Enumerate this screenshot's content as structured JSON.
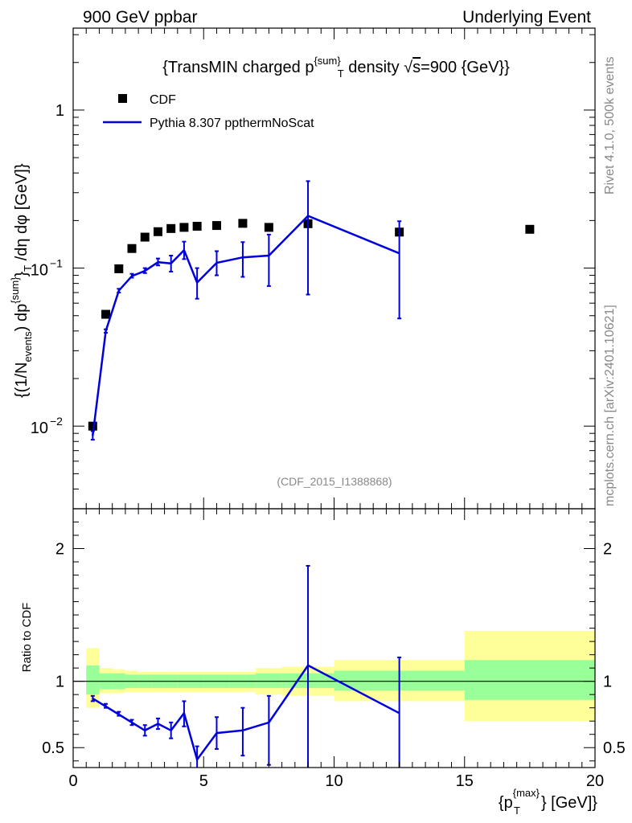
{
  "header": {
    "left": "900 GeV ppbar",
    "right": "Underlying Event"
  },
  "side_labels": {
    "rivet": "Rivet 4.1.0,  500k events",
    "mcplots": "mcplots.cern.ch [arXiv:2401.10621]"
  },
  "chart_data": [
    {
      "type": "scatter",
      "panel": "main",
      "title_parts": {
        "pre": "{TransMIN charged p",
        "sup": "{sum}",
        "sub": "T",
        "post1": " density √",
        "sqrt": "s",
        "post2": "=900 {GeV}}"
      },
      "ylabel_parts": {
        "a": "{(1/N",
        "a_sub": "events",
        "b": ") dp",
        "b_sup": "{sum}",
        "c": "}",
        "c_sub": "T",
        "d": " /dη  dφ [GeV]}"
      },
      "yscale": "log",
      "ylim": [
        0.003,
        3.3
      ],
      "xlim": [
        0,
        20
      ],
      "y_ticks": [
        {
          "value": 1,
          "label": "1"
        },
        {
          "value": 0.1,
          "base": "10",
          "exp": "−1"
        },
        {
          "value": 0.01,
          "base": "10",
          "exp": "−2"
        }
      ],
      "watermark": "(CDF_2015_I1388868)",
      "legend": [
        {
          "name": "CDF",
          "marker": "square",
          "color": "#000000"
        },
        {
          "name": "Pythia 8.307 ppthermNoScat",
          "marker": "line",
          "color": "#0000dd"
        }
      ],
      "series": [
        {
          "name": "CDF",
          "x": [
            0.75,
            1.25,
            1.75,
            2.25,
            2.75,
            3.25,
            3.75,
            4.25,
            4.75,
            5.5,
            6.5,
            7.5,
            9.0,
            12.5,
            17.5
          ],
          "y": [
            0.01,
            0.051,
            0.099,
            0.133,
            0.157,
            0.17,
            0.178,
            0.181,
            0.184,
            0.186,
            0.192,
            0.181,
            0.191,
            0.169,
            0.176
          ]
        },
        {
          "name": "Pythia 8.307 ppthermNoScat",
          "x": [
            0.75,
            1.25,
            1.75,
            2.25,
            2.75,
            3.25,
            3.75,
            4.25,
            4.75,
            5.5,
            6.5,
            7.5,
            9.0,
            12.5
          ],
          "y": [
            0.0087,
            0.04,
            0.072,
            0.089,
            0.096,
            0.109,
            0.107,
            0.13,
            0.081,
            0.108,
            0.117,
            0.12,
            0.214,
            0.124
          ],
          "yerr_low": [
            0.0082,
            0.039,
            0.07,
            0.087,
            0.093,
            0.104,
            0.095,
            0.114,
            0.064,
            0.09,
            0.088,
            0.077,
            0.068,
            0.048
          ],
          "yerr_high": [
            0.0093,
            0.041,
            0.074,
            0.092,
            0.1,
            0.115,
            0.12,
            0.147,
            0.1,
            0.128,
            0.146,
            0.163,
            0.355,
            0.198
          ]
        }
      ]
    },
    {
      "type": "line",
      "panel": "ratio",
      "ylabel": "Ratio to CDF",
      "xlabel_parts": {
        "pre": "{p",
        "sup": "{max}",
        "sub": "T",
        "post": "} [GeV]}"
      },
      "ylim": [
        0.35,
        2.3
      ],
      "xlim": [
        0,
        20
      ],
      "x_ticks": [
        0,
        5,
        10,
        15,
        20
      ],
      "x_tick_labels": [
        "0",
        "5",
        "10",
        "15",
        "20"
      ],
      "y_ticks": [
        0.5,
        1,
        2
      ],
      "y_tick_labels": [
        "0.5",
        "1",
        "2"
      ],
      "reference_line": 1,
      "bands": {
        "bins": [
          [
            0.5,
            1.0
          ],
          [
            1.0,
            1.5
          ],
          [
            1.5,
            2.0
          ],
          [
            2.0,
            2.5
          ],
          [
            2.5,
            3.0
          ],
          [
            3.0,
            3.5
          ],
          [
            3.5,
            4.0
          ],
          [
            4.0,
            4.5
          ],
          [
            4.5,
            5.0
          ],
          [
            5.0,
            6.0
          ],
          [
            6.0,
            7.0
          ],
          [
            7.0,
            8.0
          ],
          [
            8.0,
            10.0
          ],
          [
            10.0,
            15.0
          ],
          [
            15.0,
            20.0
          ]
        ],
        "inner_low": [
          0.9,
          0.94,
          0.94,
          0.95,
          0.95,
          0.95,
          0.95,
          0.95,
          0.95,
          0.95,
          0.95,
          0.95,
          0.95,
          0.93,
          0.86
        ],
        "inner_high": [
          1.12,
          1.06,
          1.06,
          1.05,
          1.05,
          1.05,
          1.05,
          1.05,
          1.05,
          1.05,
          1.05,
          1.06,
          1.06,
          1.08,
          1.16
        ],
        "outer_low": [
          0.8,
          0.91,
          0.91,
          0.92,
          0.92,
          0.92,
          0.92,
          0.92,
          0.92,
          0.92,
          0.92,
          0.9,
          0.89,
          0.85,
          0.7
        ],
        "outer_high": [
          1.25,
          1.1,
          1.09,
          1.08,
          1.07,
          1.07,
          1.07,
          1.07,
          1.07,
          1.07,
          1.07,
          1.1,
          1.11,
          1.16,
          1.38
        ],
        "inner_color": "#99ff99",
        "outer_color": "#ffff99"
      },
      "series": [
        {
          "name": "Pythia 8.307 ppthermNoScat",
          "color": "#0000dd",
          "x": [
            0.75,
            1.25,
            1.75,
            2.25,
            2.75,
            3.25,
            3.75,
            4.25,
            4.75,
            5.5,
            6.5,
            7.5,
            9.0,
            12.5
          ],
          "y": [
            0.87,
            0.81,
            0.75,
            0.69,
            0.63,
            0.68,
            0.63,
            0.76,
            0.41,
            0.61,
            0.63,
            0.69,
            1.12,
            0.76
          ],
          "yerr_low": [
            0.85,
            0.8,
            0.74,
            0.67,
            0.59,
            0.64,
            0.57,
            0.66,
            0.32,
            0.49,
            0.44,
            0.37,
            0.33,
            0.3
          ],
          "yerr_high": [
            0.89,
            0.83,
            0.77,
            0.71,
            0.67,
            0.72,
            0.69,
            0.85,
            0.51,
            0.73,
            0.8,
            0.89,
            1.87,
            1.18
          ]
        }
      ]
    }
  ]
}
